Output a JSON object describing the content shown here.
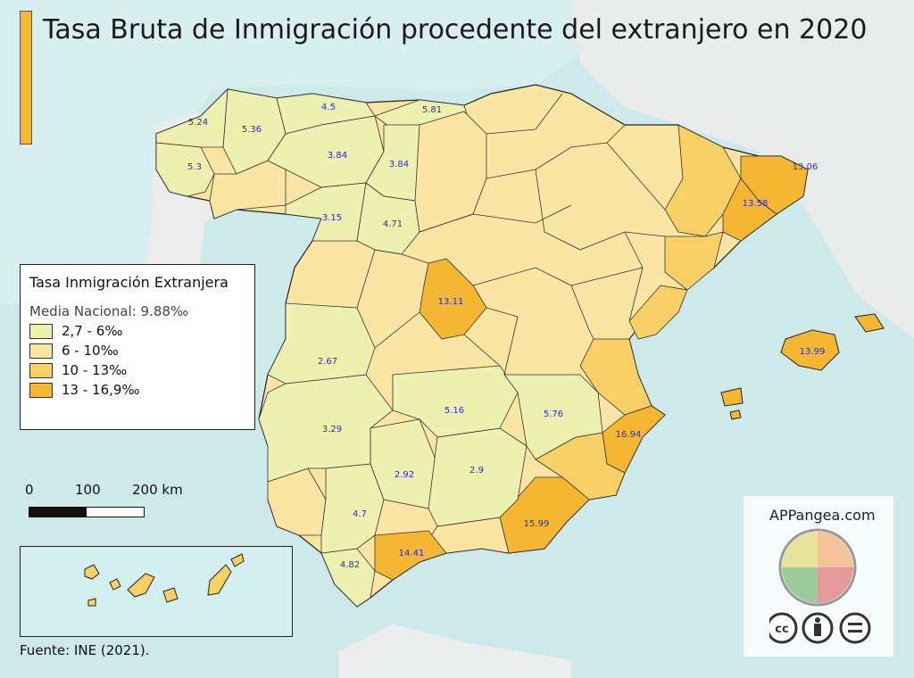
{
  "title": "Tasa Bruta de Inmigración procedente del extranjero en 2020",
  "legend": {
    "title": "Tasa Inmigración Extranjera",
    "subtitle": "Media Nacional: 9.88‰",
    "classes": [
      {
        "label": "2,7 - 6‰",
        "color": "#eef0b0"
      },
      {
        "label": "6 - 10‰",
        "color": "#fbe5a3"
      },
      {
        "label": "10 - 13‰",
        "color": "#f9d066"
      },
      {
        "label": "13 - 16,9‰",
        "color": "#f5b731"
      }
    ]
  },
  "scale": {
    "labels": [
      "0",
      "100",
      "200 km"
    ]
  },
  "source": "Fuente: INE (2021).",
  "brand": "APPangea.com",
  "license_icons": [
    "cc-icon",
    "attribution-icon",
    "no-derivatives-icon"
  ],
  "colors": {
    "sea": "#cde9ea",
    "border": "#222222"
  },
  "provinces": [
    {
      "name": "Pontevedra",
      "value": "5.3"
    },
    {
      "name": "A Coruña",
      "value": "5.24"
    },
    {
      "name": "Lugo",
      "value": "5.36"
    },
    {
      "name": "Asturias",
      "value": "4.5"
    },
    {
      "name": "Cantabria",
      "value": "5.81"
    },
    {
      "name": "León",
      "value": "3.84"
    },
    {
      "name": "Palencia",
      "value": "3.84"
    },
    {
      "name": "Zamora",
      "value": "3.15"
    },
    {
      "name": "Valladolid",
      "value": "4.71"
    },
    {
      "name": "Madrid",
      "value": "13.11"
    },
    {
      "name": "Girona",
      "value": "13.06"
    },
    {
      "name": "Barcelona",
      "value": "13.58"
    },
    {
      "name": "Illes Balears",
      "value": "13.99"
    },
    {
      "name": "Cáceres",
      "value": "2.67"
    },
    {
      "name": "Badajoz",
      "value": "3.29"
    },
    {
      "name": "Ciudad Real",
      "value": "5.16"
    },
    {
      "name": "Albacete",
      "value": "5.76"
    },
    {
      "name": "Alicante",
      "value": "16.94"
    },
    {
      "name": "Córdoba",
      "value": "2.92"
    },
    {
      "name": "Jaén",
      "value": "2.9"
    },
    {
      "name": "Sevilla",
      "value": "4.7"
    },
    {
      "name": "Almería",
      "value": "15.99"
    },
    {
      "name": "Málaga",
      "value": "14.41"
    },
    {
      "name": "Cádiz",
      "value": "4.82"
    }
  ]
}
